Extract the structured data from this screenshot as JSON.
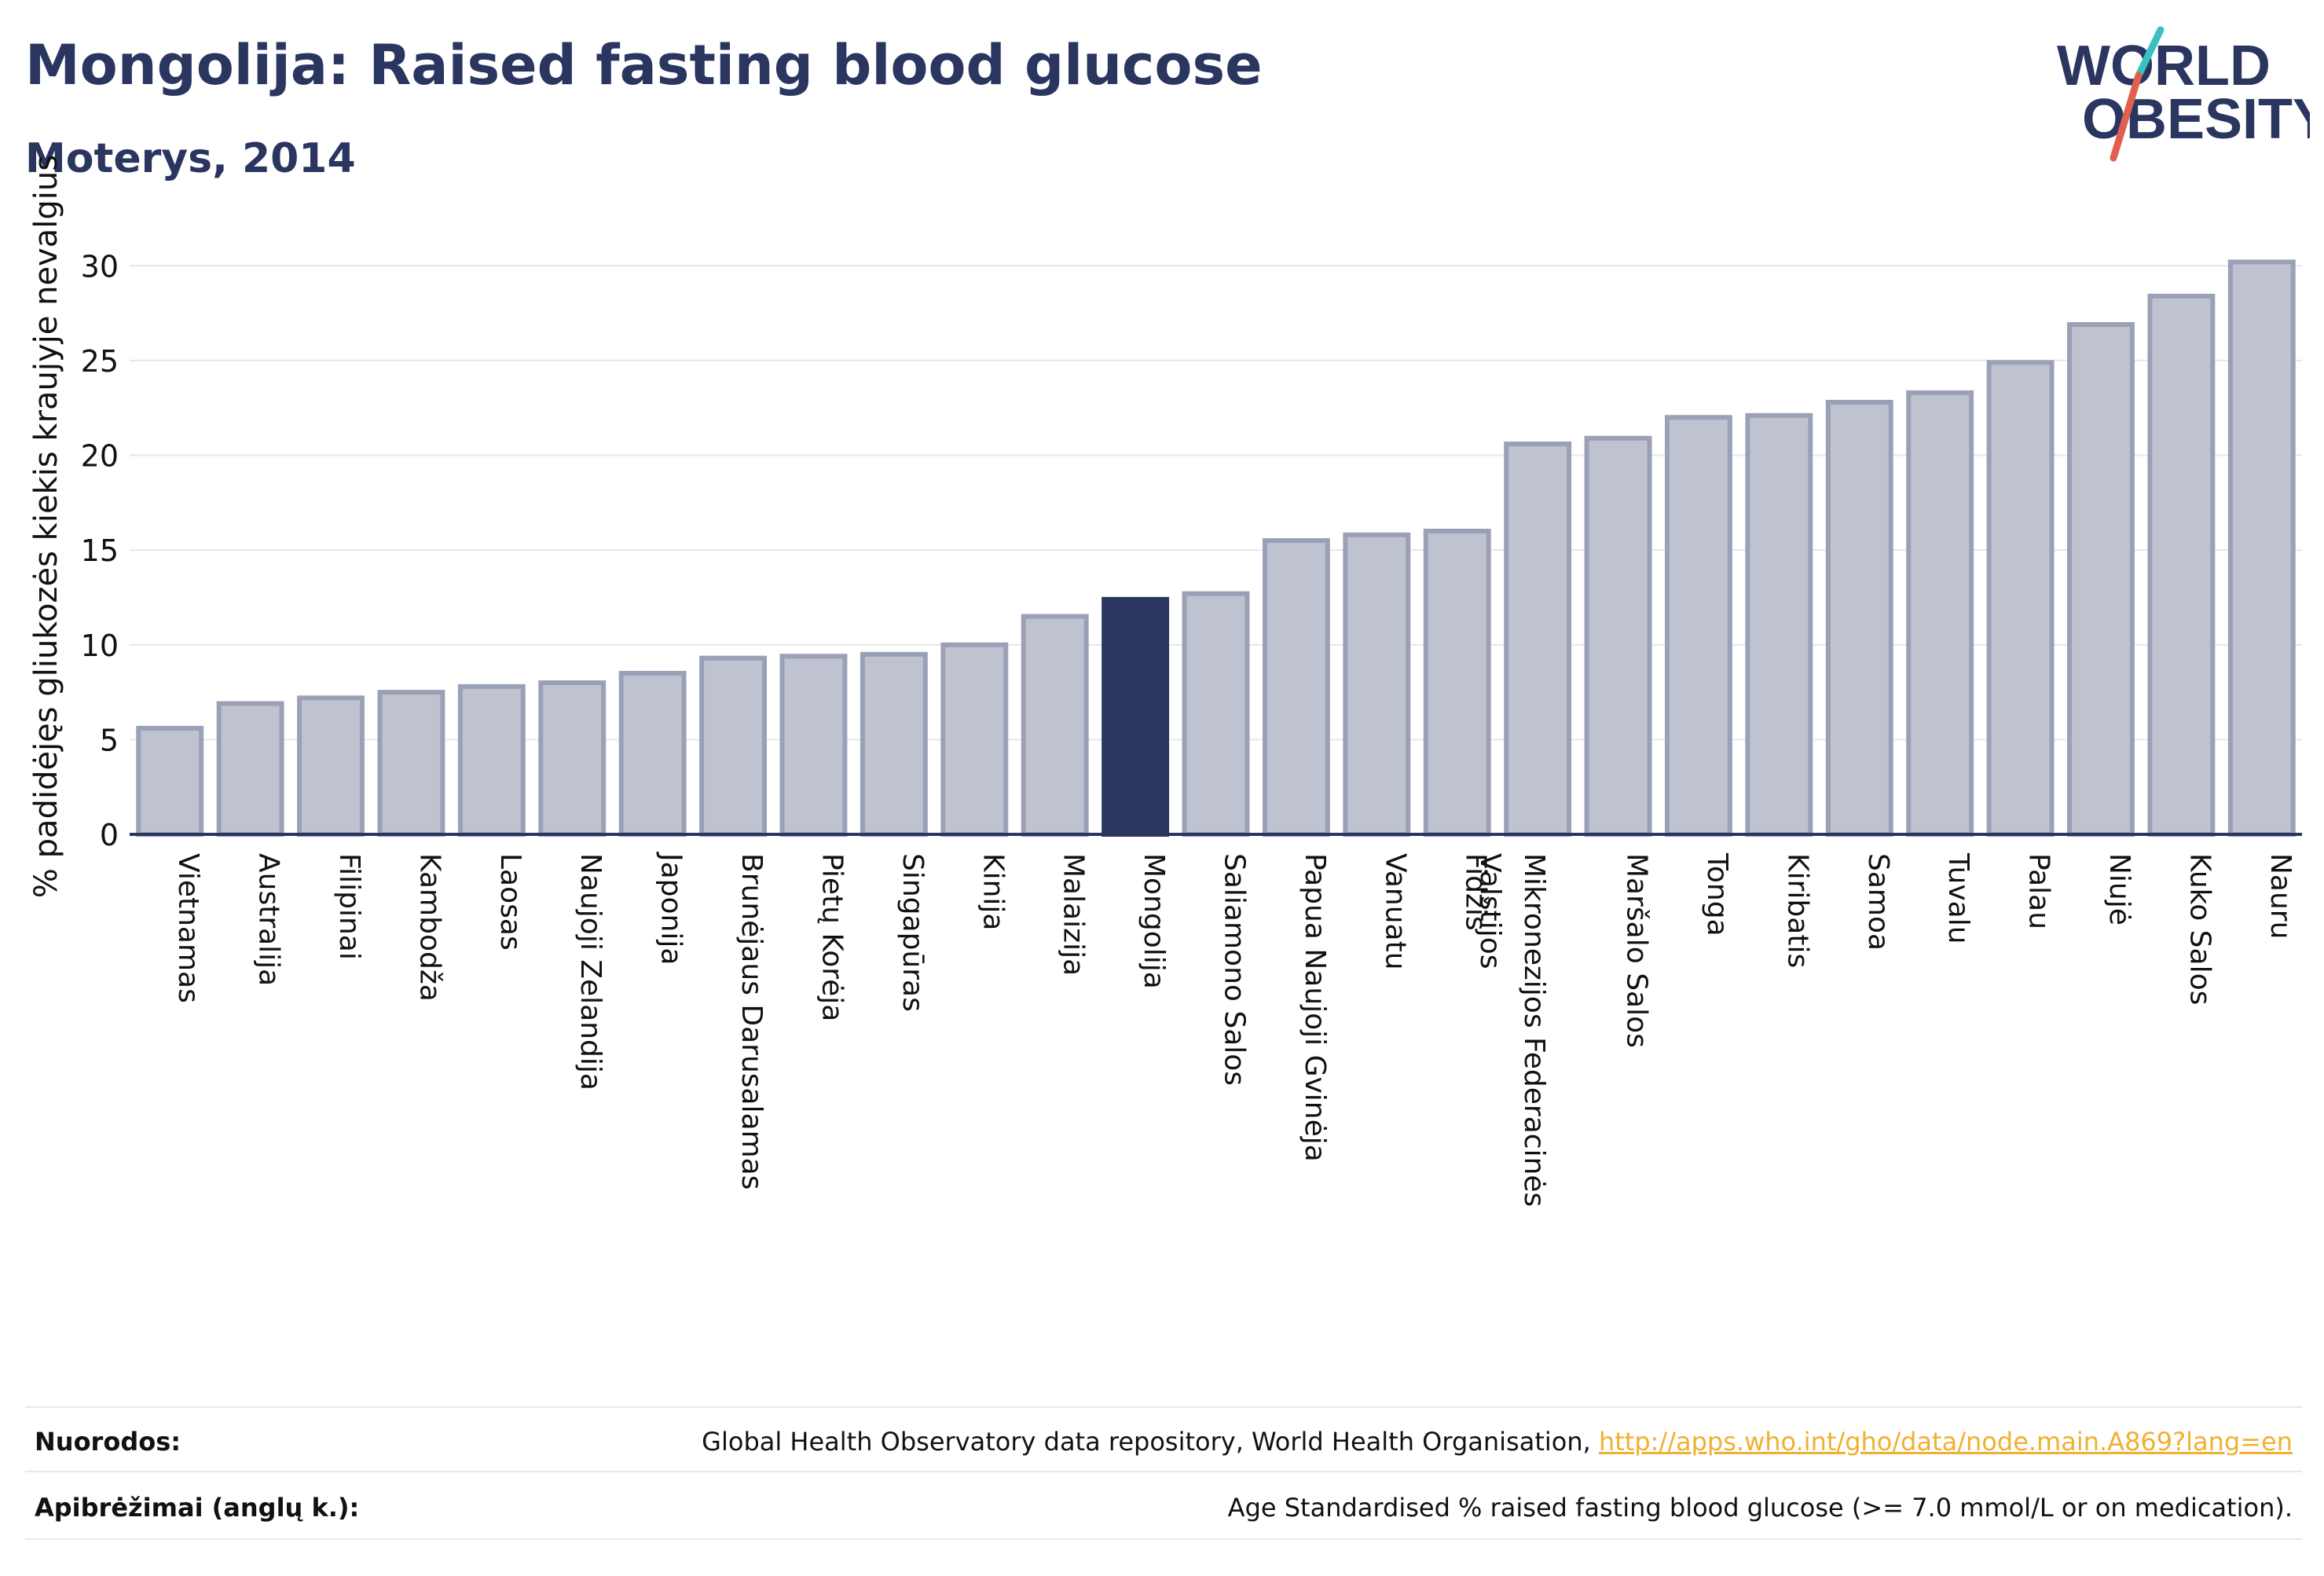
{
  "header": {
    "title": "Mongolija: Raised fasting blood glucose",
    "subtitle": "Moterys, 2014"
  },
  "logo": {
    "line1": "WORLD",
    "line2": "OBESITY",
    "colors": {
      "text": "#2a3560",
      "slash_teal": "#3bbfc0",
      "slash_red": "#e06050"
    }
  },
  "chart_data": {
    "type": "bar",
    "ylabel": "% padidėjęs gliukozės kiekis kraujyje nevalgius",
    "ylim": [
      0,
      32
    ],
    "yticks": [
      0,
      5,
      10,
      15,
      20,
      25,
      30
    ],
    "grid": true,
    "highlight": "Mongolija",
    "colors": {
      "bar": "#bfc3d0",
      "bar_edge": "#9aa0b6",
      "highlight": "#2a3560",
      "axis": "#2a3560",
      "grid": "#e6e6ec"
    },
    "categories": [
      "Vietnamas",
      "Australija",
      "Filipinai",
      "Kambodža",
      "Laosas",
      "Naujoji Zelandija",
      "Japonija",
      "Brunėjaus Darusalamas",
      "Pietų Korėja",
      "Singapūras",
      "Kinija",
      "Malaizija",
      "Mongolija",
      "Saliamono Salos",
      "Papua Naujoji Gvinėja",
      "Vanuatu",
      "Fidžis",
      "Mikronezijos Federacinės Valstijos",
      "Maršalo Salos",
      "Tonga",
      "Kiribatis",
      "Samoa",
      "Tuvalu",
      "Palau",
      "Niujė",
      "Kuko Salos",
      "Nauru"
    ],
    "values": [
      5.6,
      6.9,
      7.2,
      7.5,
      7.8,
      8.0,
      8.5,
      9.3,
      9.4,
      9.5,
      10.0,
      11.5,
      12.4,
      12.7,
      15.5,
      15.8,
      16.0,
      20.6,
      20.9,
      22.0,
      22.1,
      22.8,
      23.3,
      24.9,
      26.9,
      28.4,
      30.2
    ]
  },
  "footer": {
    "sources_label": "Nuorodos:",
    "sources_text": "Global Health Observatory data repository, World Health Organisation, ",
    "sources_link": "http://apps.who.int/gho/data/node.main.A869?lang=en",
    "definitions_label": "Apibrėžimai (anglų k.):",
    "definitions_text": "Age Standardised % raised fasting blood glucose (>= 7.0 mmol/L or on medication)."
  }
}
